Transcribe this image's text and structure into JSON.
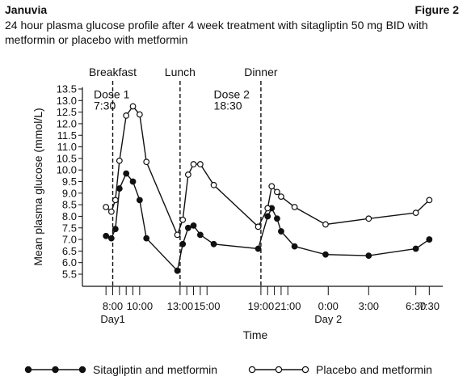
{
  "header": {
    "left": "Januvia",
    "right": "Figure 2"
  },
  "chart_data": {
    "type": "line",
    "title": "24 hour plasma glucose profile after 4 week treatment with sitagliptin 50 mg BID with metformin or placebo with metformin",
    "xlabel": "Time",
    "ylabel": "Mean plasma glucose (mmol/L)",
    "ylim": [
      5.5,
      13.5
    ],
    "yticks": [
      "5.5",
      "6.0",
      "6.5",
      "7.0",
      "7.5",
      "8.0",
      "8.5",
      "9.0",
      "9.5",
      "10.0",
      "10.5",
      "11.0",
      "11.5",
      "12.0",
      "12.5",
      "13.0",
      "13.5"
    ],
    "xticks": [
      {
        "h": 7.5,
        "label": ""
      },
      {
        "h": 8,
        "label": "8:00"
      },
      {
        "h": 8.5,
        "label": ""
      },
      {
        "h": 9,
        "label": ""
      },
      {
        "h": 9.5,
        "label": ""
      },
      {
        "h": 10,
        "label": "10:00"
      },
      {
        "h": 13,
        "label": "13:00"
      },
      {
        "h": 13.5,
        "label": ""
      },
      {
        "h": 14,
        "label": ""
      },
      {
        "h": 14.5,
        "label": ""
      },
      {
        "h": 15,
        "label": "15:00"
      },
      {
        "h": 19,
        "label": "19:00"
      },
      {
        "h": 19.5,
        "label": ""
      },
      {
        "h": 20,
        "label": ""
      },
      {
        "h": 20.5,
        "label": ""
      },
      {
        "h": 21,
        "label": "21:00"
      },
      {
        "h": 24,
        "label": "0:00"
      },
      {
        "h": 27,
        "label": "3:00"
      },
      {
        "h": 30.5,
        "label": "6:30"
      },
      {
        "h": 31.5,
        "label": "7:30"
      }
    ],
    "day_labels": [
      {
        "h": 8,
        "label": "Day1"
      },
      {
        "h": 24,
        "label": "Day 2"
      }
    ],
    "event_lines": [
      {
        "h": 8,
        "label": "Breakfast"
      },
      {
        "h": 13,
        "label": "Lunch"
      },
      {
        "h": 19,
        "label": "Dinner"
      }
    ],
    "annotations": [
      {
        "h": 7.3,
        "y": 13.1,
        "lines": [
          "Dose 1",
          "7:30"
        ]
      },
      {
        "h": 15.5,
        "y": 13.1,
        "lines": [
          "Dose 2",
          "18:30"
        ]
      }
    ],
    "series": [
      {
        "name": "Sitagliptin and metformin",
        "marker": "filled",
        "x": [
          7.5,
          7.9,
          8.2,
          8.5,
          9,
          9.5,
          10,
          10.5,
          12.8,
          13.2,
          13.6,
          14,
          14.5,
          15.5,
          18.8,
          19.5,
          19.8,
          20.2,
          20.5,
          21.5,
          23.8,
          27,
          30.5,
          31.5
        ],
        "y": [
          7.15,
          7.05,
          7.45,
          9.2,
          9.85,
          9.5,
          8.7,
          7.05,
          5.65,
          6.8,
          7.5,
          7.6,
          7.2,
          6.8,
          6.6,
          8.0,
          8.35,
          7.9,
          7.35,
          6.7,
          6.35,
          6.3,
          6.6,
          7.0
        ]
      },
      {
        "name": "Placebo and metformin",
        "marker": "open",
        "x": [
          7.5,
          7.9,
          8.2,
          8.5,
          9,
          9.5,
          10,
          10.5,
          12.8,
          13.2,
          13.6,
          14,
          14.5,
          15.5,
          18.8,
          19.5,
          19.8,
          20.2,
          20.5,
          21.5,
          23.8,
          27,
          30.5,
          31.5
        ],
        "y": [
          8.4,
          8.2,
          8.7,
          10.4,
          12.35,
          12.75,
          12.4,
          10.35,
          7.2,
          7.85,
          9.8,
          10.25,
          10.25,
          9.35,
          7.55,
          8.35,
          9.3,
          9.05,
          8.85,
          8.4,
          7.65,
          7.9,
          8.15,
          8.7
        ]
      }
    ],
    "legend_position": "bottom",
    "grid": false
  }
}
